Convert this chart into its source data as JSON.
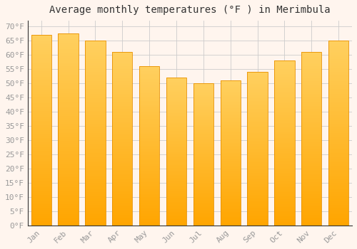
{
  "title": "Average monthly temperatures (°F ) in Merimbula",
  "months": [
    "Jan",
    "Feb",
    "Mar",
    "Apr",
    "May",
    "Jun",
    "Jul",
    "Aug",
    "Sep",
    "Oct",
    "Nov",
    "Dec"
  ],
  "values": [
    67,
    67.5,
    65,
    61,
    56,
    52,
    50,
    51,
    54,
    58,
    61,
    65
  ],
  "bar_color_bottom": "#FFA500",
  "bar_color_top": "#FFD060",
  "bar_edge_color": "#E89000",
  "background_color": "#FFF5EE",
  "grid_color": "#CCCCCC",
  "yticks": [
    0,
    5,
    10,
    15,
    20,
    25,
    30,
    35,
    40,
    45,
    50,
    55,
    60,
    65,
    70
  ],
  "ylim": [
    0,
    72
  ],
  "title_fontsize": 10,
  "tick_fontsize": 8,
  "tick_font_color": "#999999"
}
